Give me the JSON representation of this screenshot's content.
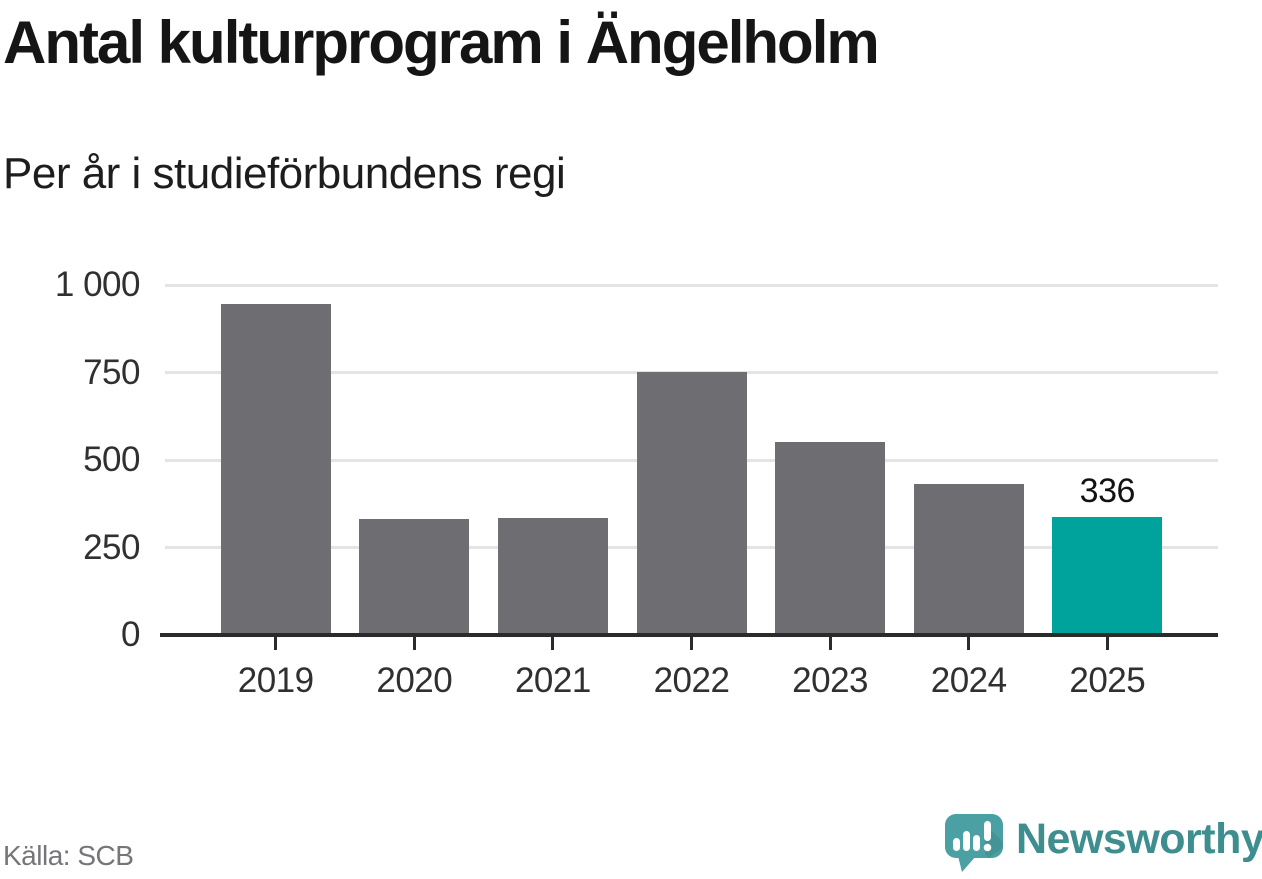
{
  "source": "Källa: SCB",
  "brand": {
    "name": "Newsworthy"
  },
  "chart_data": {
    "type": "bar",
    "title": "Antal kulturprogram i Ängelholm",
    "subtitle": "Per år i studieförbundens regi",
    "categories": [
      "2019",
      "2020",
      "2021",
      "2022",
      "2023",
      "2024",
      "2025"
    ],
    "values": [
      945,
      330,
      335,
      750,
      550,
      430,
      336
    ],
    "highlight_index": 6,
    "bar_value_label": {
      "index": 6,
      "text": "336"
    },
    "xlabel": "",
    "ylabel": "",
    "ylim": [
      0,
      1000
    ],
    "yticks": [
      0,
      250,
      500,
      750,
      1000
    ],
    "ytick_labels": [
      "0",
      "250",
      "500",
      "750",
      "1 000"
    ],
    "grid": true,
    "legend": false,
    "colors": {
      "bar": "#6d6d72",
      "highlight": "#00a39b",
      "grid": "#e4e4e4",
      "axis": "#2b2b2b",
      "brand_text": "#3e8e90",
      "logo_bubble": "#4aa0a2"
    }
  }
}
